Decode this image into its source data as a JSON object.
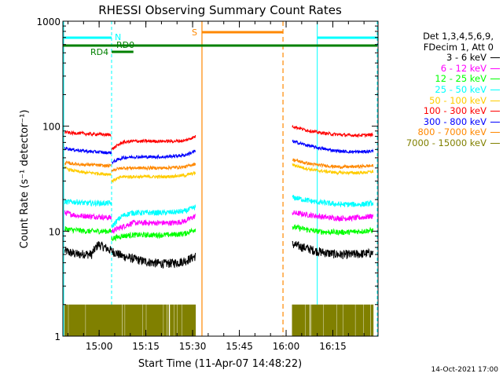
{
  "chart_data": {
    "type": "line",
    "title": "RHESSI Observing Summary Count Rates",
    "xlabel": "Start Time (11-Apr-07 14:48:22)",
    "ylabel": "Count Rate (s⁻¹ detector⁻¹)",
    "yscale": "log",
    "ylim": [
      1,
      1000
    ],
    "xlim": [
      "14:48:22",
      "16:29:30"
    ],
    "x_ticks": [
      "15:00",
      "15:15",
      "15:30",
      "15:45",
      "16:00",
      "16:15"
    ],
    "y_ticks": [
      "1",
      "10",
      "100",
      "1000"
    ],
    "legend_header": [
      "Det 1,3,4,5,6,9,",
      "FDecim 1, Att 0"
    ],
    "series": [
      {
        "name": "3 - 6 keV",
        "color": "#000000",
        "segments": [
          {
            "start": "14:49",
            "end": "15:04",
            "values": [
              6.5,
              6.2,
              6.0,
              6.1,
              6.0,
              7.5,
              7.0,
              6.5
            ]
          },
          {
            "start": "15:04",
            "end": "15:31",
            "values": [
              6.5,
              5.8,
              5.5,
              5.2,
              5.0,
              4.9,
              5.0,
              5.2,
              5.8
            ]
          },
          {
            "start": "16:02",
            "end": "16:28",
            "values": [
              7.5,
              7.0,
              6.5,
              6.2,
              6.0,
              6.0,
              6.1,
              6.2
            ]
          }
        ]
      },
      {
        "name": "6 - 12 keV",
        "color": "#ff00ff",
        "segments": [
          {
            "start": "14:49",
            "end": "15:04",
            "values": [
              15,
              14.5,
              14,
              14,
              13.8,
              13.8,
              13.5,
              13.5
            ]
          },
          {
            "start": "15:04",
            "end": "15:31",
            "values": [
              10,
              11,
              12,
              12,
              12,
              12,
              12,
              12.5,
              14
            ]
          },
          {
            "start": "16:02",
            "end": "16:28",
            "values": [
              15,
              14.5,
              14,
              13.5,
              13.3,
              13.3,
              13.5,
              14
            ]
          }
        ]
      },
      {
        "name": "12 - 25 keV",
        "color": "#00ff00",
        "segments": [
          {
            "start": "14:49",
            "end": "15:04",
            "values": [
              10.5,
              10.3,
              10.2,
              10,
              10,
              10,
              10,
              10
            ]
          },
          {
            "start": "15:04",
            "end": "15:31",
            "values": [
              8.5,
              9,
              9.2,
              9.2,
              9.2,
              9.2,
              9.3,
              9.5,
              10.5
            ]
          },
          {
            "start": "16:02",
            "end": "16:28",
            "values": [
              11,
              10.5,
              10,
              9.8,
              9.8,
              9.8,
              10,
              10.2
            ]
          }
        ]
      },
      {
        "name": "25 - 50 keV",
        "color": "#00ffff",
        "segments": [
          {
            "start": "14:49",
            "end": "15:04",
            "values": [
              19,
              19,
              19,
              18.5,
              18.5,
              18.5,
              18.5,
              18.5
            ]
          },
          {
            "start": "15:04",
            "end": "15:31",
            "values": [
              11,
              14,
              15,
              15,
              15,
              15,
              15.2,
              15.5,
              17
            ]
          },
          {
            "start": "16:02",
            "end": "16:28",
            "values": [
              21,
              20,
              19,
              18.5,
              18,
              18,
              18,
              18.5
            ]
          }
        ]
      },
      {
        "name": "50 - 100 keV",
        "color": "#ffcc00",
        "segments": [
          {
            "start": "14:49",
            "end": "15:04",
            "values": [
              40,
              38,
              37,
              36,
              36,
              35.5,
              35,
              35
            ]
          },
          {
            "start": "15:04",
            "end": "15:31",
            "values": [
              30,
              33,
              33,
              33,
              33,
              33,
              33.5,
              34,
              36
            ]
          },
          {
            "start": "16:02",
            "end": "16:28",
            "values": [
              43,
              40,
              38,
              37,
              36,
              36,
              36,
              37
            ]
          }
        ]
      },
      {
        "name": "100 - 300 keV",
        "color": "#ff0000",
        "segments": [
          {
            "start": "14:49",
            "end": "15:04",
            "values": [
              88,
              86,
              86,
              85,
              84,
              84,
              83,
              83
            ]
          },
          {
            "start": "15:04",
            "end": "15:31",
            "values": [
              60,
              70,
              72,
              72,
              72,
              72,
              72,
              73,
              80
            ]
          },
          {
            "start": "16:02",
            "end": "16:28",
            "values": [
              100,
              93,
              88,
              85,
              83,
              82,
              82,
              83
            ]
          }
        ]
      },
      {
        "name": "300 - 800 keV",
        "color": "#0000ff",
        "segments": [
          {
            "start": "14:49",
            "end": "15:04",
            "values": [
              62,
              60,
              59,
              58,
              57,
              57,
              56,
              56
            ]
          },
          {
            "start": "15:04",
            "end": "15:31",
            "values": [
              45,
              50,
              51,
              51,
              51,
              51,
              52,
              53,
              58
            ]
          },
          {
            "start": "16:02",
            "end": "16:28",
            "values": [
              72,
              67,
              63,
              60,
              58,
              57,
              57,
              58
            ]
          }
        ]
      },
      {
        "name": "800 - 7000 keV",
        "color": "#ff8800",
        "segments": [
          {
            "start": "14:49",
            "end": "15:04",
            "values": [
              45,
              44,
              43.5,
              43,
              43,
              42.5,
              42,
              42
            ]
          },
          {
            "start": "15:04",
            "end": "15:31",
            "values": [
              38,
              40,
              40,
              40,
              40,
              40,
              40.5,
              41,
              44
            ]
          },
          {
            "start": "16:02",
            "end": "16:28",
            "values": [
              48,
              45,
              43,
              42,
              41,
              41,
              41.5,
              42
            ]
          }
        ]
      },
      {
        "name": "7000 - 15000 keV",
        "color": "#808000",
        "style": "bars",
        "segments": [
          {
            "start": "14:49",
            "end": "15:31",
            "values": [
              2
            ]
          },
          {
            "start": "16:02",
            "end": "16:28",
            "values": [
              2
            ]
          }
        ]
      }
    ],
    "annotations": {
      "saa": {
        "label": "S",
        "color": "#ff8800",
        "start": "15:33",
        "end": "15:59"
      },
      "night": {
        "label": "N",
        "color": "#00ffff",
        "intervals": [
          [
            "14:48:22",
            "15:04"
          ],
          [
            "16:10",
            "16:29:30"
          ]
        ]
      },
      "rd0": {
        "label": "RD0",
        "color": "#008000",
        "start": "15:04",
        "end": "15:11"
      },
      "rd4": {
        "label": "RD4",
        "color": "#008000",
        "start": "14:48:22",
        "end": "16:29:30"
      }
    },
    "grid": false,
    "legend_position": "right"
  },
  "footer": {
    "date": "14-Oct-2021 17:00"
  }
}
